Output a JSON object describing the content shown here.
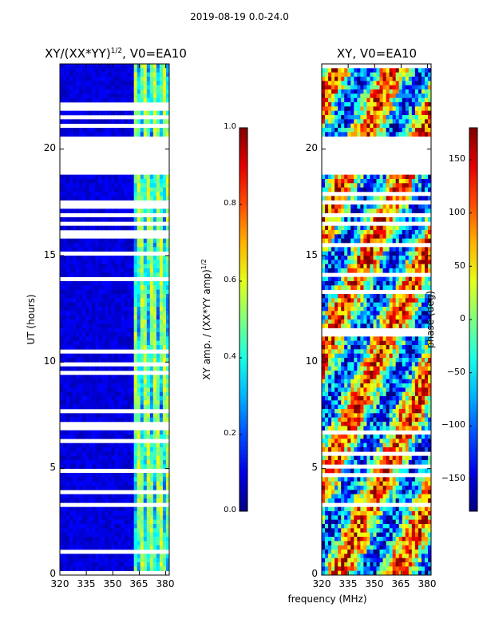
{
  "figure": {
    "suptitle": "2019-08-19 0.0-24.0",
    "xlabel_shared": "frequency (MHz)"
  },
  "chart_data": [
    {
      "type": "heatmap",
      "title_prefix": "XY/(XX*YY)",
      "title_exp": "1/2",
      "title_suffix": ", V0=EA10",
      "xlabel": "",
      "ylabel": "UT (hours)",
      "x_ticks": [
        "320",
        "335",
        "350",
        "365",
        "380"
      ],
      "y_ticks": [
        "0",
        "5",
        "10",
        "15",
        "20"
      ],
      "xlim": [
        320,
        382
      ],
      "ylim": [
        0,
        24
      ],
      "colorbar": {
        "label_prefix": "XY amp. / (XX*YY amp)",
        "label_exp": "1/2",
        "ticks": [
          "0.0",
          "0.2",
          "0.4",
          "0.6",
          "0.8",
          "1.0"
        ],
        "range": [
          0,
          1
        ],
        "colormap": "jet"
      }
    },
    {
      "type": "heatmap",
      "title": "XY, V0=EA10",
      "xlabel": "frequency (MHz)",
      "ylabel": "",
      "x_ticks": [
        "320",
        "335",
        "350",
        "365",
        "380"
      ],
      "y_ticks": [
        "0",
        "5",
        "10",
        "15",
        "20"
      ],
      "xlim": [
        320,
        382
      ],
      "ylim": [
        0,
        24
      ],
      "colorbar": {
        "label": "phase (deg)",
        "ticks": [
          "150",
          "100",
          "50",
          "0",
          "−50",
          "−100",
          "−150"
        ],
        "range": [
          -180,
          180
        ],
        "colormap": "jet"
      }
    }
  ]
}
